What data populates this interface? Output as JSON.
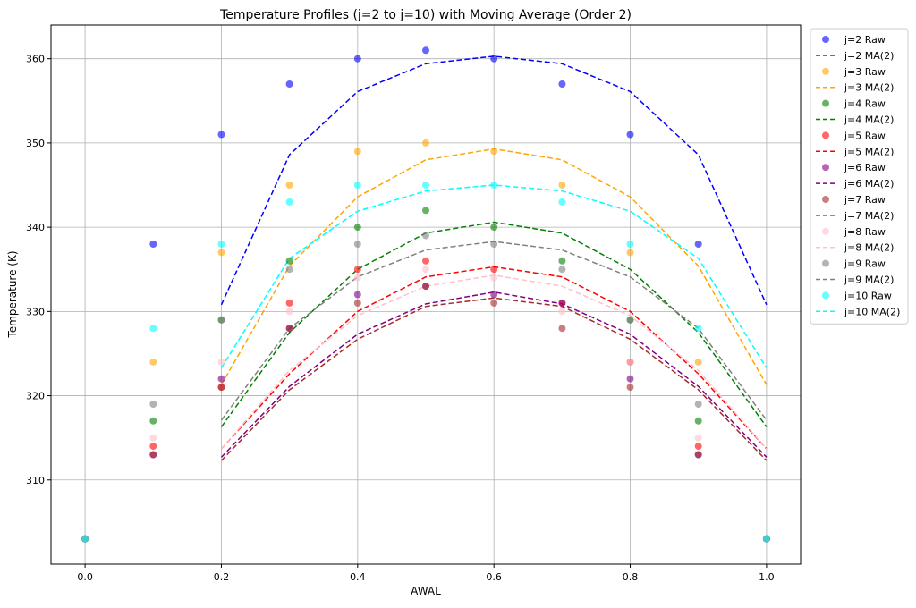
{
  "chart_data": {
    "type": "scatter",
    "title": "Temperature Profiles (j=2 to j=10) with Moving Average (Order 2)",
    "xlabel": "AWAL",
    "ylabel": "Temperature (K)",
    "xlim": [
      -0.05,
      1.05
    ],
    "ylim": [
      300,
      364
    ],
    "xticks": [
      0.0,
      0.2,
      0.4,
      0.6,
      0.8,
      1.0
    ],
    "xtick_labels": [
      "0.0",
      "0.2",
      "0.4",
      "0.6",
      "0.8",
      "1.0"
    ],
    "yticks": [
      310,
      320,
      330,
      340,
      350,
      360
    ],
    "ytick_labels": [
      "310",
      "320",
      "330",
      "340",
      "350",
      "360"
    ],
    "grid": true,
    "legend_position": "outside-right",
    "x": [
      0.0,
      0.1,
      0.2,
      0.3,
      0.4,
      0.5,
      0.6,
      0.7,
      0.8,
      0.9,
      1.0
    ],
    "ma_x": [
      0.2,
      0.3,
      0.4,
      0.5,
      0.6,
      0.7,
      0.8,
      0.9,
      1.0
    ],
    "series": [
      {
        "name": "j=2",
        "raw_label": "j=2 Raw",
        "ma_label": "j=2 MA(2)",
        "color": "#0000ff",
        "raw": [
          303,
          338,
          351,
          357,
          360,
          361,
          360,
          357,
          351,
          338,
          303
        ],
        "ma": [
          330.8,
          348.6,
          356.1,
          359.4,
          360.3,
          359.4,
          356.1,
          348.6,
          330.8
        ]
      },
      {
        "name": "j=3",
        "raw_label": "j=3 Raw",
        "ma_label": "j=3 MA(2)",
        "color": "#ffa500",
        "raw": [
          303,
          324,
          337,
          345,
          349,
          350,
          349,
          345,
          337,
          324,
          303
        ],
        "ma": [
          321.3,
          335.4,
          343.6,
          348.0,
          349.3,
          348.0,
          343.6,
          335.4,
          321.3
        ]
      },
      {
        "name": "j=4",
        "raw_label": "j=4 Raw",
        "ma_label": "j=4 MA(2)",
        "color": "#008000",
        "raw": [
          303,
          317,
          329,
          336,
          340,
          342,
          340,
          336,
          329,
          317,
          303
        ],
        "ma": [
          316.3,
          327.5,
          335.0,
          339.3,
          340.6,
          339.3,
          335.0,
          327.5,
          316.3
        ]
      },
      {
        "name": "j=5",
        "raw_label": "j=5 Raw",
        "ma_label": "j=5 MA(2)",
        "color": "#ff0000",
        "raw": [
          303,
          314,
          321,
          331,
          335,
          336,
          335,
          331,
          324,
          314,
          303
        ],
        "ma": [
          313.7,
          322.6,
          330.0,
          334.1,
          335.3,
          334.1,
          330.0,
          322.6,
          313.7
        ]
      },
      {
        "name": "j=6",
        "raw_label": "j=6 Raw",
        "ma_label": "j=6 MA(2)",
        "color": "#800080",
        "raw": [
          303,
          313,
          322,
          328,
          332,
          333,
          332,
          331,
          322,
          313,
          303
        ],
        "ma": [
          312.7,
          321.1,
          327.3,
          330.9,
          332.3,
          330.9,
          327.3,
          321.1,
          312.7
        ]
      },
      {
        "name": "j=7",
        "raw_label": "j=7 Raw",
        "ma_label": "j=7 MA(2)",
        "color": "#a52a2a",
        "raw": [
          303,
          313,
          321,
          328,
          331,
          333,
          331,
          328,
          321,
          313,
          303
        ],
        "ma": [
          312.3,
          320.7,
          326.7,
          330.6,
          331.6,
          330.6,
          326.7,
          320.7,
          312.3
        ]
      },
      {
        "name": "j=8",
        "raw_label": "j=8 Raw",
        "ma_label": "j=8 MA(2)",
        "color": "#ffc0cb",
        "raw": [
          303,
          315,
          324,
          330,
          334,
          335,
          334,
          330,
          324,
          315,
          303
        ],
        "ma": [
          313.7,
          323.0,
          329.5,
          333.0,
          334.3,
          333.0,
          329.5,
          323.0,
          313.7
        ]
      },
      {
        "name": "j=9",
        "raw_label": "j=9 Raw",
        "ma_label": "j=9 MA(2)",
        "color": "#808080",
        "raw": [
          303,
          319,
          329,
          335,
          338,
          339,
          338,
          335,
          329,
          319,
          303
        ],
        "ma": [
          317.1,
          328.0,
          334.1,
          337.3,
          338.3,
          337.3,
          334.1,
          328.0,
          317.1
        ]
      },
      {
        "name": "j=10",
        "raw_label": "j=10 Raw",
        "ma_label": "j=10 MA(2)",
        "color": "#00ffff",
        "raw": [
          303,
          328,
          338,
          343,
          345,
          345,
          345,
          343,
          338,
          328,
          303
        ],
        "ma": [
          323.3,
          336.3,
          341.9,
          344.3,
          345.0,
          344.3,
          341.9,
          336.3,
          323.3
        ]
      }
    ]
  }
}
